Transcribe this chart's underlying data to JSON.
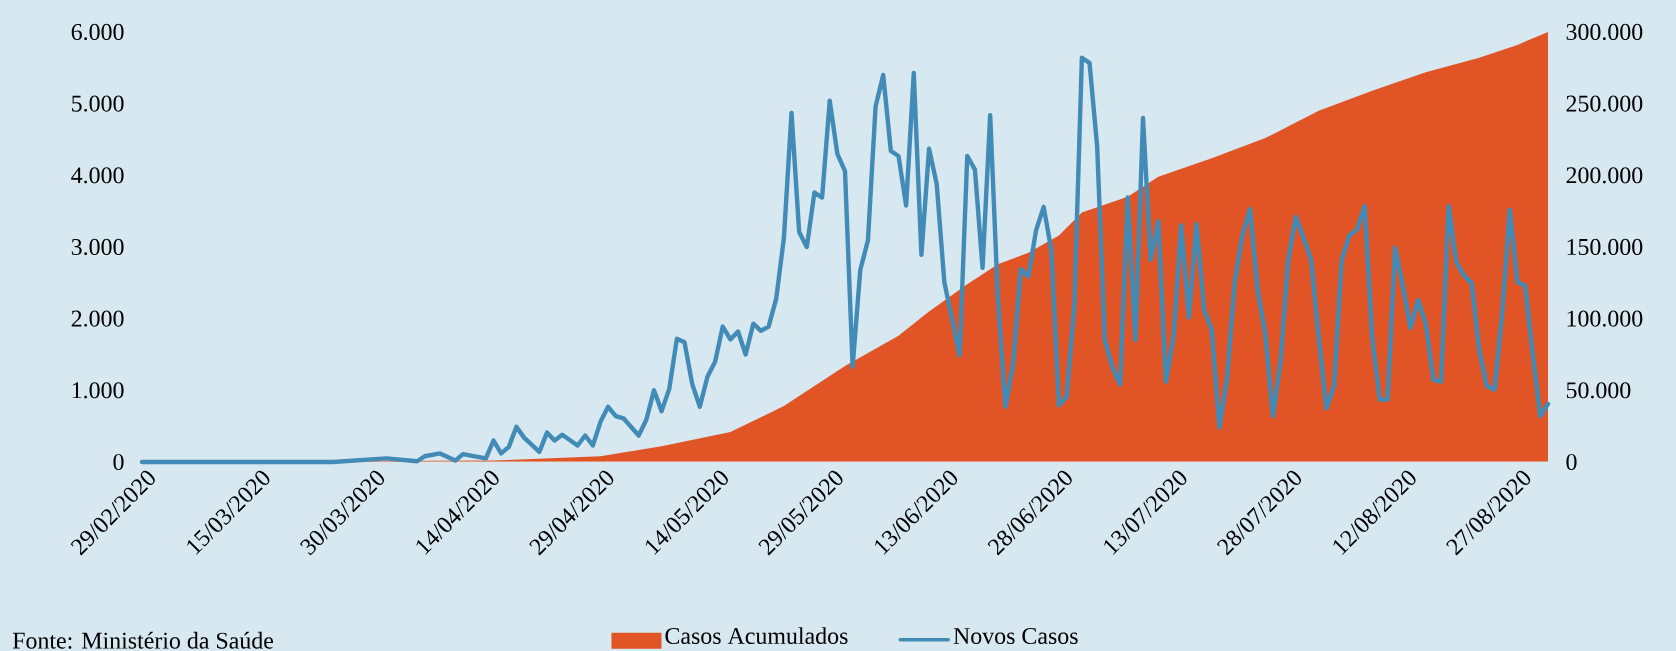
{
  "chart_data": {
    "type": "line",
    "annotations": [
      "Fonte: Ministério da Saúde"
    ],
    "xlim": [
      "2020-02-29",
      "2020-08-31"
    ],
    "xticks": [
      {
        "value": "2020-02-29",
        "label": "29/02/2020"
      },
      {
        "value": "2020-03-15",
        "label": "15/03/2020"
      },
      {
        "value": "2020-03-30",
        "label": "30/03/2020"
      },
      {
        "value": "2020-04-14",
        "label": "14/04/2020"
      },
      {
        "value": "2020-04-29",
        "label": "29/04/2020"
      },
      {
        "value": "2020-05-14",
        "label": "14/05/2020"
      },
      {
        "value": "2020-05-29",
        "label": "29/05/2020"
      },
      {
        "value": "2020-06-13",
        "label": "13/06/2020"
      },
      {
        "value": "2020-06-28",
        "label": "28/06/2020"
      },
      {
        "value": "2020-07-13",
        "label": "13/07/2020"
      },
      {
        "value": "2020-07-28",
        "label": "28/07/2020"
      },
      {
        "value": "2020-08-12",
        "label": "12/08/2020"
      },
      {
        "value": "2020-08-27",
        "label": "27/08/2020"
      }
    ],
    "ylim": [
      0,
      6000
    ],
    "yticks": [
      0,
      {
        "value": 1000,
        "label": "1.000"
      },
      {
        "value": 2000,
        "label": "2.000"
      },
      {
        "value": 3000,
        "label": "3.000"
      },
      {
        "value": 4000,
        "label": "4.000"
      },
      {
        "value": 5000,
        "label": "5.000"
      },
      {
        "value": 6000,
        "label": "6.000"
      }
    ],
    "y2lim": [
      0,
      300000
    ],
    "y2ticks": [
      0,
      {
        "value": 50000,
        "label": "50.000"
      },
      {
        "value": 100000,
        "label": "100.000"
      },
      {
        "value": 150000,
        "label": "150.000"
      },
      {
        "value": 200000,
        "label": "200.000"
      },
      {
        "value": 250000,
        "label": "250.000"
      },
      {
        "value": 300000,
        "label": "300.000"
      }
    ],
    "legend": "bottom",
    "series": [
      {
        "name": "Casos Acumulados",
        "type": "area",
        "axis": "y2",
        "color": "#e05426",
        "x": [
          "2020-02-29",
          "2020-04-15",
          "2020-04-29",
          "2020-05-07",
          "2020-05-16",
          "2020-05-23",
          "2020-05-31",
          "2020-06-07",
          "2020-06-11",
          "2020-06-16",
          "2020-06-20",
          "2020-06-24",
          "2020-06-28",
          "2020-07-01",
          "2020-07-07",
          "2020-07-11",
          "2020-07-18",
          "2020-07-25",
          "2020-08-01",
          "2020-08-08",
          "2020-08-15",
          "2020-08-22",
          "2020-08-27",
          "2020-08-31"
        ],
        "values": [
          0,
          1000,
          4000,
          11000,
          21000,
          39000,
          67000,
          88000,
          105000,
          124000,
          138000,
          146000,
          158000,
          174000,
          185000,
          199000,
          212000,
          226000,
          245000,
          259000,
          272000,
          282000,
          291000,
          300000
        ]
      },
      {
        "name": "Novos Casos",
        "color": "#428bb7",
        "x": [
          "2020-02-29",
          "2020-03-25",
          "2020-04-01",
          "2020-04-05",
          "2020-04-06",
          "2020-04-08",
          "2020-04-10",
          "2020-04-11",
          "2020-04-14",
          "2020-04-15",
          "2020-04-16",
          "2020-04-17",
          "2020-04-18",
          "2020-04-19",
          "2020-04-21",
          "2020-04-22",
          "2020-04-23",
          "2020-04-24",
          "2020-04-26",
          "2020-04-27",
          "2020-04-28",
          "2020-04-29",
          "2020-04-30",
          "2020-05-01",
          "2020-05-02",
          "2020-05-04",
          "2020-05-05",
          "2020-05-06",
          "2020-05-07",
          "2020-05-08",
          "2020-05-09",
          "2020-05-10",
          "2020-05-11",
          "2020-05-12",
          "2020-05-13",
          "2020-05-14",
          "2020-05-15",
          "2020-05-16",
          "2020-05-17",
          "2020-05-18",
          "2020-05-19",
          "2020-05-20",
          "2020-05-21",
          "2020-05-22",
          "2020-05-23",
          "2020-05-24",
          "2020-05-25",
          "2020-05-26",
          "2020-05-27",
          "2020-05-28",
          "2020-05-29",
          "2020-05-30",
          "2020-05-31",
          "2020-06-01",
          "2020-06-02",
          "2020-06-03",
          "2020-06-04",
          "2020-06-05",
          "2020-06-06",
          "2020-06-07",
          "2020-06-08",
          "2020-06-09",
          "2020-06-10",
          "2020-06-11",
          "2020-06-12",
          "2020-06-13",
          "2020-06-15",
          "2020-06-16",
          "2020-06-17",
          "2020-06-18",
          "2020-06-19",
          "2020-06-20",
          "2020-06-21",
          "2020-06-22",
          "2020-06-23",
          "2020-06-24",
          "2020-06-25",
          "2020-06-26",
          "2020-06-27",
          "2020-06-28",
          "2020-06-29",
          "2020-06-30",
          "2020-07-01",
          "2020-07-02",
          "2020-07-03",
          "2020-07-04",
          "2020-07-05",
          "2020-07-06",
          "2020-07-07",
          "2020-07-08",
          "2020-07-09",
          "2020-07-10",
          "2020-07-11",
          "2020-07-12",
          "2020-07-13",
          "2020-07-14",
          "2020-07-15",
          "2020-07-16",
          "2020-07-17",
          "2020-07-18",
          "2020-07-19",
          "2020-07-20",
          "2020-07-21",
          "2020-07-22",
          "2020-07-23",
          "2020-07-24",
          "2020-07-25",
          "2020-07-26",
          "2020-07-27",
          "2020-07-28",
          "2020-07-29",
          "2020-07-30",
          "2020-07-31",
          "2020-08-01",
          "2020-08-02",
          "2020-08-03",
          "2020-08-04",
          "2020-08-05",
          "2020-08-06",
          "2020-08-07",
          "2020-08-08",
          "2020-08-09",
          "2020-08-10",
          "2020-08-11",
          "2020-08-12",
          "2020-08-13",
          "2020-08-14",
          "2020-08-15",
          "2020-08-16",
          "2020-08-17",
          "2020-08-18",
          "2020-08-19",
          "2020-08-20",
          "2020-08-21",
          "2020-08-22",
          "2020-08-23",
          "2020-08-24",
          "2020-08-25",
          "2020-08-26",
          "2020-08-27",
          "2020-08-28",
          "2020-08-29",
          "2020-08-30",
          "2020-08-31"
        ],
        "values": [
          0,
          0,
          50,
          10,
          80,
          120,
          20,
          110,
          50,
          300,
          120,
          210,
          490,
          340,
          140,
          410,
          300,
          380,
          230,
          370,
          230,
          560,
          770,
          640,
          610,
          370,
          590,
          1000,
          710,
          1020,
          1720,
          1670,
          1090,
          770,
          1190,
          1400,
          1890,
          1710,
          1820,
          1500,
          1930,
          1830,
          1890,
          2280,
          3120,
          4870,
          3210,
          3000,
          3760,
          3690,
          5040,
          4300,
          4060,
          1330,
          2680,
          3090,
          4960,
          5400,
          4340,
          4270,
          3580,
          5430,
          2890,
          4370,
          3880,
          2510,
          1490,
          4270,
          4080,
          2710,
          4840,
          2300,
          770,
          1370,
          2690,
          2590,
          3230,
          3560,
          2960,
          790,
          910,
          2160,
          5640,
          5570,
          4400,
          1700,
          1320,
          1080,
          3690,
          1700,
          4800,
          2820,
          3360,
          1120,
          1760,
          3300,
          2020,
          3320,
          2120,
          1840,
          480,
          1170,
          2510,
          3160,
          3530,
          2400,
          1790,
          640,
          1400,
          2820,
          3420,
          3130,
          2820,
          1730,
          750,
          1060,
          2820,
          3160,
          3240,
          3570,
          1730,
          870,
          870,
          2990,
          2460,
          1870,
          2260,
          1930,
          1150,
          1120,
          3570,
          2790,
          2600,
          2500,
          1560,
          1060,
          1010,
          2070,
          3520,
          2510,
          2460,
          1510,
          640,
          810
        ]
      }
    ]
  }
}
